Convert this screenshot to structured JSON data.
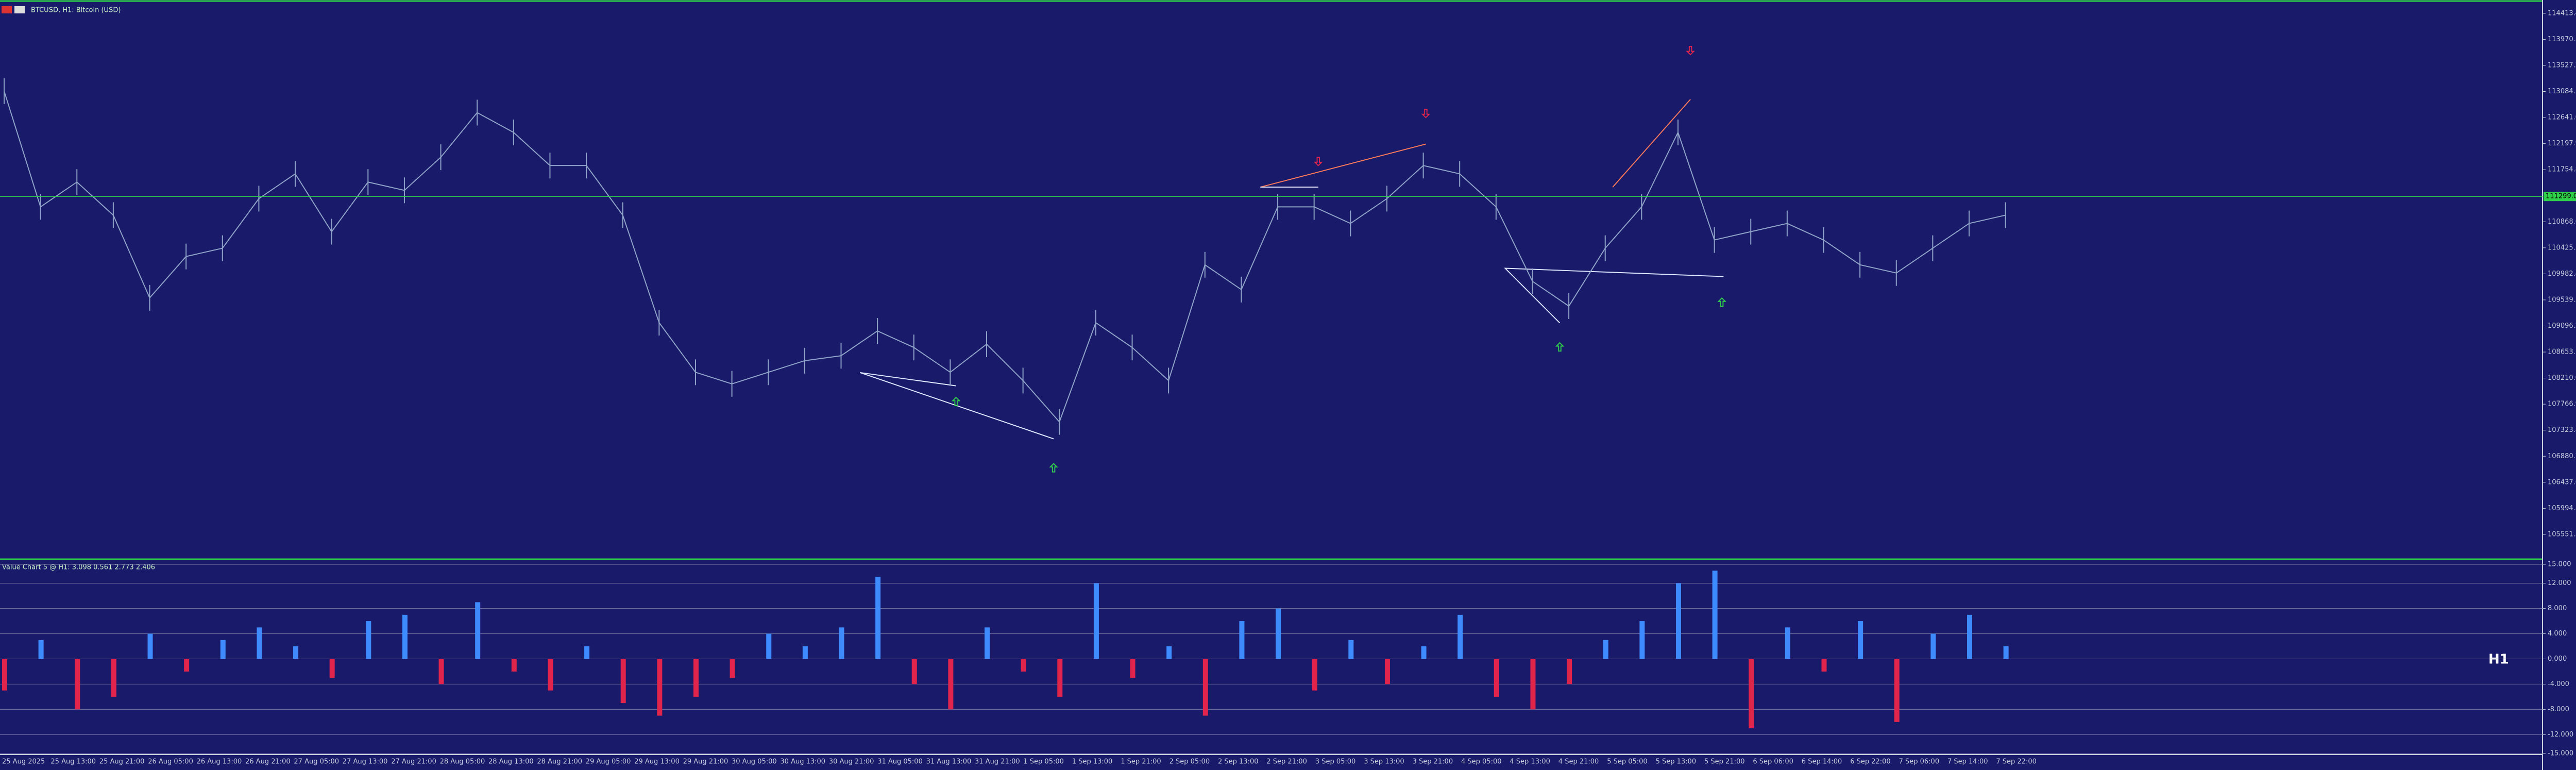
{
  "chart_data": [
    {
      "type": "line",
      "title": "BTCUSD, H1:  Bitcoin (USD)",
      "color": "#8fa3c8",
      "values": [
        113091,
        111122,
        111544,
        110981,
        109575,
        110278,
        110419,
        111262,
        111684,
        110700,
        111544,
        111403,
        111966,
        112725,
        112388,
        111825,
        111825,
        110981,
        109153,
        108309,
        108112,
        108309,
        108506,
        108590,
        109012,
        108731,
        108309,
        108787,
        108168,
        107465,
        109153,
        108731,
        108168,
        110137,
        109715,
        111122,
        111122,
        110840,
        111262,
        111825,
        111684,
        111122,
        109856,
        109434,
        110419,
        111122,
        112388,
        110559,
        110700,
        110840,
        110559,
        110137,
        109997,
        110419,
        110840,
        110981
      ],
      "ylim": [
        105130,
        114640
      ],
      "yticks": [
        {
          "value": 114413.4,
          "label": "114413.40"
        },
        {
          "value": 113970.3,
          "label": "113970.30"
        },
        {
          "value": 113527.2,
          "label": "113527.20"
        },
        {
          "value": 113084.1,
          "label": "113084.10"
        },
        {
          "value": 112641.0,
          "label": "112641.00"
        },
        {
          "value": 112197.9,
          "label": "112197.90"
        },
        {
          "value": 111754.8,
          "label": "111754.80"
        },
        {
          "value": 110868.6,
          "label": "110868.60"
        },
        {
          "value": 110425.5,
          "label": "110425.50"
        },
        {
          "value": 109982.4,
          "label": "109982.40"
        },
        {
          "value": 109539.3,
          "label": "109539.30"
        },
        {
          "value": 109096.2,
          "label": "109096.20"
        },
        {
          "value": 108653.1,
          "label": "108653.10"
        },
        {
          "value": 108210.0,
          "label": "108210.00"
        },
        {
          "value": 107766.9,
          "label": "107766.90"
        },
        {
          "value": 107323.8,
          "label": "107323.80"
        },
        {
          "value": 106880.7,
          "label": "106880.70"
        },
        {
          "value": 106437.6,
          "label": "106437.60"
        },
        {
          "value": 105994.5,
          "label": "105994.50"
        },
        {
          "value": 105551.5,
          "label": "105551.50"
        }
      ],
      "current_price": {
        "value": 111299,
        "label": "111299.00"
      },
      "time_labels": [
        "25 Aug 2025",
        "25 Aug 13:00",
        "25 Aug 21:00",
        "26 Aug 05:00",
        "26 Aug 13:00",
        "26 Aug 21:00",
        "27 Aug 05:00",
        "27 Aug 13:00",
        "27 Aug 21:00",
        "28 Aug 05:00",
        "28 Aug 13:00",
        "28 Aug 21:00",
        "29 Aug 05:00",
        "29 Aug 13:00",
        "29 Aug 21:00",
        "30 Aug 05:00",
        "30 Aug 13:00",
        "30 Aug 21:00",
        "31 Aug 05:00",
        "31 Aug 13:00",
        "31 Aug 21:00",
        "1 Sep 05:00",
        "1 Sep 13:00",
        "1 Sep 21:00",
        "2 Sep 05:00",
        "2 Sep 13:00",
        "2 Sep 21:00",
        "3 Sep 05:00",
        "3 Sep 13:00",
        "3 Sep 21:00",
        "4 Sep 05:00",
        "4 Sep 13:00",
        "4 Sep 21:00",
        "5 Sep 05:00",
        "5 Sep 13:00",
        "5 Sep 21:00",
        "6 Sep 06:00",
        "6 Sep 14:00",
        "6 Sep 22:00",
        "7 Sep 06:00",
        "7 Sep 14:00",
        "7 Sep 22:00"
      ]
    },
    {
      "type": "bar",
      "title": "Value Chart 5 @ H1: 3.098 0.561 2.773 2.406",
      "annotation": "H1",
      "up_color": "#3d8bff",
      "down_color": "#e0244c",
      "values": [
        -5,
        3,
        -8,
        -6,
        4,
        -2,
        3,
        5,
        2,
        -3,
        6,
        7,
        -4,
        9,
        -2,
        -5,
        2,
        -7,
        -9,
        -6,
        -3,
        4,
        2,
        5,
        13,
        -4,
        -8,
        5,
        -2,
        -6,
        12,
        -3,
        2,
        -9,
        6,
        8,
        -5,
        3,
        -4,
        2,
        7,
        -6,
        -8,
        -4,
        3,
        6,
        12,
        14,
        -11,
        5,
        -2,
        6,
        -10,
        4,
        7,
        2
      ],
      "ylim": [
        -15,
        15
      ],
      "yticks": [
        {
          "value": 15,
          "label": "15.000"
        },
        {
          "value": 12,
          "label": "12.000"
        },
        {
          "value": 8,
          "label": "8.000"
        },
        {
          "value": 4,
          "label": "4.000"
        },
        {
          "value": 0,
          "label": "0.000"
        },
        {
          "value": -4,
          "label": "-4.000"
        },
        {
          "value": -8,
          "label": "-8.000"
        },
        {
          "value": -12,
          "label": "-12.000"
        },
        {
          "value": -15,
          "label": "-15.000"
        }
      ]
    }
  ]
}
